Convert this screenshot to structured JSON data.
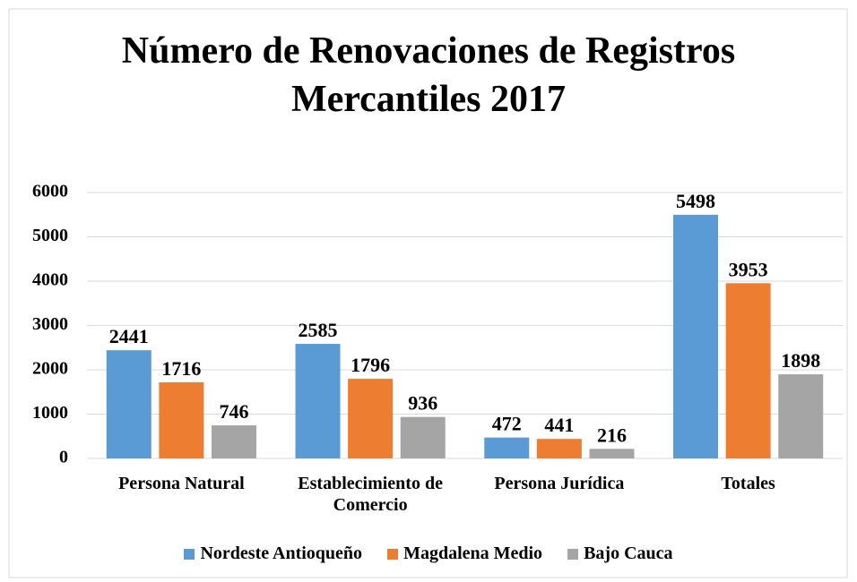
{
  "chart_data": {
    "type": "bar",
    "title": "Número de Renovaciones de Registros Mercantiles 2017",
    "categories": [
      "Persona Natural",
      "Establecimiento de Comercio",
      "Persona Jurídica",
      "Totales"
    ],
    "series": [
      {
        "name": "Nordeste Antioqueño",
        "color": "#5b9bd5",
        "values": [
          2441,
          2585,
          472,
          5498
        ]
      },
      {
        "name": "Magdalena Medio",
        "color": "#ed7d31",
        "values": [
          1716,
          1796,
          441,
          3953
        ]
      },
      {
        "name": "Bajo Cauca",
        "color": "#a5a5a5",
        "values": [
          746,
          936,
          216,
          1898
        ]
      }
    ],
    "ylim": [
      0,
      6000
    ],
    "yticks": [
      0,
      1000,
      2000,
      3000,
      4000,
      5000,
      6000
    ],
    "grid": true,
    "legend": "bottom"
  }
}
